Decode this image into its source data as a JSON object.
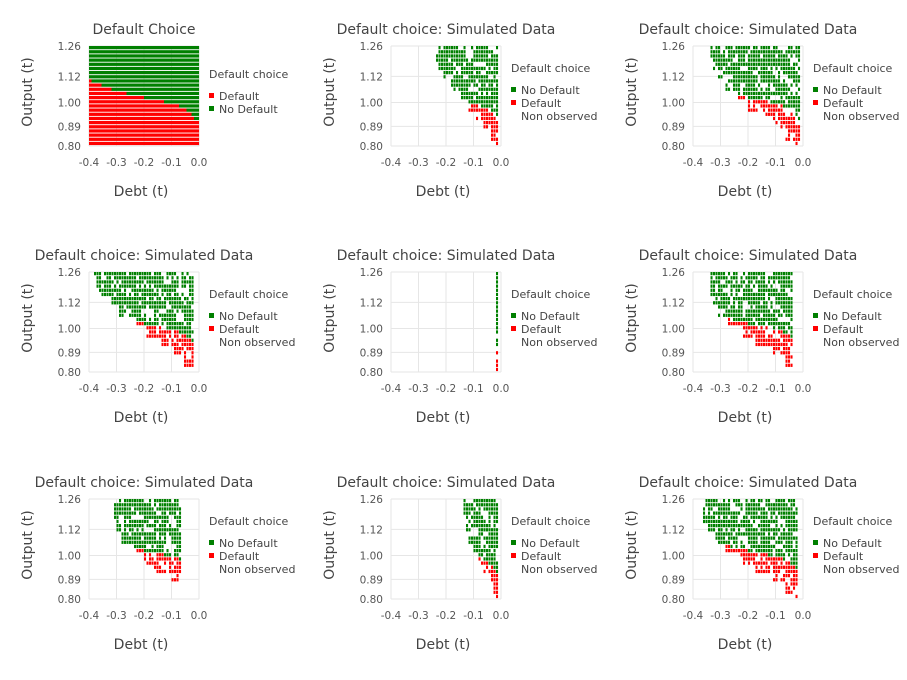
{
  "colors": {
    "default": "#ff0000",
    "no_default": "#008000",
    "non_observed": "#ffffff"
  },
  "chart_data": [
    {
      "type": "heatmap",
      "title": "Default Choice",
      "xlabel": "Debt (t)",
      "ylabel": "Output (t)",
      "xticks": [
        "-0.4",
        "-0.3",
        "-0.2",
        "-0.1",
        "0.0"
      ],
      "xtick_values": [
        -0.4,
        -0.3,
        -0.2,
        -0.1,
        0.0
      ],
      "yticks": [
        "1.26",
        "1.12",
        "1.00",
        "0.89",
        "0.80"
      ],
      "ytick_values": [
        1.26,
        1.12,
        1.0,
        0.89,
        0.8
      ],
      "xlim": [
        -0.4,
        0.0
      ],
      "ylim": [
        0.8,
        1.26
      ],
      "grid": true,
      "legend_position": "right",
      "legend": {
        "title": "Default choice",
        "items": [
          "Default",
          "No Default"
        ]
      },
      "boundary": {
        "x": [
          -0.4,
          -0.36,
          -0.32,
          -0.28,
          -0.24,
          -0.2,
          -0.16,
          -0.12,
          -0.08,
          -0.04,
          0.0
        ],
        "y": [
          1.1,
          1.08,
          1.06,
          1.05,
          1.03,
          1.02,
          1.01,
          1.0,
          0.99,
          0.96,
          0.9
        ]
      }
    },
    {
      "type": "heatmap",
      "title": "Default choice: Simulated Data",
      "xlabel": "Debt (t)",
      "ylabel": "Output (t)",
      "xticks": [
        "-0.4",
        "-0.3",
        "-0.2",
        "-0.1",
        "0.0"
      ],
      "xtick_values": [
        -0.4,
        -0.3,
        -0.2,
        -0.1,
        0.0
      ],
      "yticks": [
        "1.26",
        "1.12",
        "1.00",
        "0.89",
        "0.80"
      ],
      "ytick_values": [
        1.26,
        1.12,
        1.0,
        0.89,
        0.8
      ],
      "xlim": [
        -0.4,
        0.0
      ],
      "ylim": [
        0.8,
        1.26
      ],
      "grid": true,
      "legend_position": "right",
      "legend": {
        "title": "Default choice",
        "items": [
          "No Default",
          "Default",
          "Non observed"
        ]
      },
      "observed_region": {
        "x_min": [
          -0.24,
          -0.24,
          -0.23,
          -0.21,
          -0.18,
          -0.15,
          -0.12,
          -0.09,
          -0.06,
          -0.04,
          -0.02
        ],
        "x_max": -0.01
      },
      "boundary": {
        "x": [
          -0.4,
          -0.36,
          -0.32,
          -0.28,
          -0.24,
          -0.2,
          -0.16,
          -0.12,
          -0.08,
          -0.04,
          0.0
        ],
        "y": [
          1.1,
          1.08,
          1.06,
          1.05,
          1.03,
          1.02,
          1.01,
          1.0,
          0.99,
          0.96,
          0.9
        ]
      }
    },
    {
      "type": "heatmap",
      "title": "Default choice: Simulated Data",
      "xlabel": "Debt (t)",
      "ylabel": "Output (t)",
      "xticks": [
        "-0.4",
        "-0.3",
        "-0.2",
        "-0.1",
        "0.0"
      ],
      "xtick_values": [
        -0.4,
        -0.3,
        -0.2,
        -0.1,
        0.0
      ],
      "yticks": [
        "1.26",
        "1.12",
        "1.00",
        "0.89",
        "0.80"
      ],
      "ytick_values": [
        1.26,
        1.12,
        1.0,
        0.89,
        0.8
      ],
      "xlim": [
        -0.4,
        0.0
      ],
      "ylim": [
        0.8,
        1.26
      ],
      "grid": true,
      "legend_position": "right",
      "legend": {
        "title": "Default choice",
        "items": [
          "No Default",
          "Default",
          "Non observed"
        ]
      },
      "observed_region": {
        "x_min": [
          -0.34,
          -0.34,
          -0.33,
          -0.31,
          -0.28,
          -0.24,
          -0.2,
          -0.15,
          -0.1,
          -0.06,
          -0.03
        ],
        "x_max": -0.01
      },
      "boundary": {
        "x": [
          -0.4,
          -0.36,
          -0.32,
          -0.28,
          -0.24,
          -0.2,
          -0.16,
          -0.12,
          -0.08,
          -0.04,
          0.0
        ],
        "y": [
          1.1,
          1.08,
          1.06,
          1.05,
          1.03,
          1.02,
          1.01,
          1.0,
          0.99,
          0.96,
          0.9
        ]
      }
    },
    {
      "type": "heatmap",
      "title": "Default choice: Simulated Data",
      "xlabel": "Debt (t)",
      "ylabel": "Output (t)",
      "xticks": [
        "-0.4",
        "-0.3",
        "-0.2",
        "-0.1",
        "0.0"
      ],
      "xtick_values": [
        -0.4,
        -0.3,
        -0.2,
        -0.1,
        0.0
      ],
      "yticks": [
        "1.26",
        "1.12",
        "1.00",
        "0.89",
        "0.80"
      ],
      "ytick_values": [
        1.26,
        1.12,
        1.0,
        0.89,
        0.8
      ],
      "xlim": [
        -0.4,
        0.0
      ],
      "ylim": [
        0.8,
        1.26
      ],
      "grid": true,
      "legend_position": "right",
      "legend": {
        "title": "Default choice",
        "items": [
          "No Default",
          "Default",
          "Non observed"
        ]
      },
      "observed_region": {
        "x_min": [
          -0.38,
          -0.37,
          -0.36,
          -0.33,
          -0.29,
          -0.24,
          -0.19,
          -0.14,
          -0.09,
          -0.05,
          -0.02
        ],
        "x_max": -0.02
      },
      "boundary": {
        "x": [
          -0.4,
          -0.36,
          -0.32,
          -0.28,
          -0.24,
          -0.2,
          -0.16,
          -0.12,
          -0.08,
          -0.04,
          0.0
        ],
        "y": [
          1.1,
          1.08,
          1.06,
          1.05,
          1.03,
          1.02,
          1.01,
          1.0,
          0.99,
          0.96,
          0.9
        ]
      }
    },
    {
      "type": "heatmap",
      "title": "Default choice: Simulated Data",
      "xlabel": "Debt (t)",
      "ylabel": "Output (t)",
      "xticks": [
        "-0.4",
        "-0.3",
        "-0.2",
        "-0.1",
        "0.0"
      ],
      "xtick_values": [
        -0.4,
        -0.3,
        -0.2,
        -0.1,
        0.0
      ],
      "yticks": [
        "1.26",
        "1.12",
        "1.00",
        "0.89",
        "0.80"
      ],
      "ytick_values": [
        1.26,
        1.12,
        1.0,
        0.89,
        0.8
      ],
      "xlim": [
        -0.4,
        0.0
      ],
      "ylim": [
        0.8,
        1.26
      ],
      "grid": true,
      "legend_position": "right",
      "legend": {
        "title": "Default choice",
        "items": [
          "No Default",
          "Default",
          "Non observed"
        ]
      },
      "observed_region": {
        "x_min": [
          -0.02,
          -0.02,
          -0.02,
          -0.02,
          -0.02,
          -0.02,
          -0.02,
          -0.02,
          -0.02,
          -0.02,
          -0.02
        ],
        "x_max": -0.01
      },
      "boundary": {
        "x": [
          -0.4,
          -0.36,
          -0.32,
          -0.28,
          -0.24,
          -0.2,
          -0.16,
          -0.12,
          -0.08,
          -0.04,
          0.0
        ],
        "y": [
          1.1,
          1.08,
          1.06,
          1.05,
          1.03,
          1.02,
          1.01,
          1.0,
          0.99,
          0.96,
          0.9
        ]
      }
    },
    {
      "type": "heatmap",
      "title": "Default choice: Simulated Data",
      "xlabel": "Debt (t)",
      "ylabel": "Output (t)",
      "xticks": [
        "-0.4",
        "-0.3",
        "-0.2",
        "-0.1",
        "0.0"
      ],
      "xtick_values": [
        -0.4,
        -0.3,
        -0.2,
        -0.1,
        0.0
      ],
      "yticks": [
        "1.26",
        "1.12",
        "1.00",
        "0.89",
        "0.80"
      ],
      "ytick_values": [
        1.26,
        1.12,
        1.0,
        0.89,
        0.8
      ],
      "xlim": [
        -0.4,
        0.0
      ],
      "ylim": [
        0.8,
        1.26
      ],
      "grid": true,
      "legend_position": "right",
      "legend": {
        "title": "Default choice",
        "items": [
          "No Default",
          "Default",
          "Non observed"
        ]
      },
      "observed_region": {
        "x_min": [
          -0.34,
          -0.34,
          -0.34,
          -0.33,
          -0.31,
          -0.27,
          -0.22,
          -0.17,
          -0.11,
          -0.06,
          -0.03
        ],
        "x_max": -0.04
      },
      "boundary": {
        "x": [
          -0.4,
          -0.36,
          -0.32,
          -0.28,
          -0.24,
          -0.2,
          -0.16,
          -0.12,
          -0.08,
          -0.04,
          0.0
        ],
        "y": [
          1.1,
          1.08,
          1.06,
          1.05,
          1.03,
          1.02,
          1.01,
          1.0,
          0.99,
          0.96,
          0.9
        ]
      }
    },
    {
      "type": "heatmap",
      "title": "Default choice: Simulated Data",
      "xlabel": "Debt (t)",
      "ylabel": "Output (t)",
      "xticks": [
        "-0.4",
        "-0.3",
        "-0.2",
        "-0.1",
        "0.0"
      ],
      "xtick_values": [
        -0.4,
        -0.3,
        -0.2,
        -0.1,
        0.0
      ],
      "yticks": [
        "1.26",
        "1.12",
        "1.00",
        "0.89",
        "0.80"
      ],
      "ytick_values": [
        1.26,
        1.12,
        1.0,
        0.89,
        0.8
      ],
      "xlim": [
        -0.4,
        0.0
      ],
      "ylim": [
        0.8,
        1.26
      ],
      "grid": true,
      "legend_position": "right",
      "legend": {
        "title": "Default choice",
        "items": [
          "No Default",
          "Default",
          "Non observed"
        ]
      },
      "observed_region": {
        "x_min": [
          -0.31,
          -0.31,
          -0.31,
          -0.3,
          -0.28,
          -0.24,
          -0.2,
          -0.16,
          -0.1,
          -0.05,
          -0.03
        ],
        "x_max": -0.06
      },
      "boundary": {
        "x": [
          -0.4,
          -0.36,
          -0.32,
          -0.28,
          -0.24,
          -0.2,
          -0.16,
          -0.12,
          -0.08,
          -0.04,
          0.0
        ],
        "y": [
          1.1,
          1.08,
          1.06,
          1.05,
          1.03,
          1.02,
          1.01,
          1.0,
          0.99,
          0.96,
          0.9
        ]
      }
    },
    {
      "type": "heatmap",
      "title": "Default choice: Simulated Data",
      "xlabel": "Debt (t)",
      "ylabel": "Output (t)",
      "xticks": [
        "-0.4",
        "-0.3",
        "-0.2",
        "-0.1",
        "0.0"
      ],
      "xtick_values": [
        -0.4,
        -0.3,
        -0.2,
        -0.1,
        0.0
      ],
      "yticks": [
        "1.26",
        "1.12",
        "1.00",
        "0.89",
        "0.80"
      ],
      "ytick_values": [
        1.26,
        1.12,
        1.0,
        0.89,
        0.8
      ],
      "xlim": [
        -0.4,
        0.0
      ],
      "ylim": [
        0.8,
        1.26
      ],
      "grid": true,
      "legend_position": "right",
      "legend": {
        "title": "Default choice",
        "items": [
          "No Default",
          "Default",
          "Non observed"
        ]
      },
      "observed_region": {
        "x_min": [
          -0.14,
          -0.14,
          -0.14,
          -0.13,
          -0.12,
          -0.1,
          -0.08,
          -0.06,
          -0.04,
          -0.03,
          -0.02
        ],
        "x_max": -0.01
      },
      "boundary": {
        "x": [
          -0.4,
          -0.36,
          -0.32,
          -0.28,
          -0.24,
          -0.2,
          -0.16,
          -0.12,
          -0.08,
          -0.04,
          0.0
        ],
        "y": [
          1.1,
          1.08,
          1.06,
          1.05,
          1.03,
          1.02,
          1.01,
          1.0,
          0.99,
          0.96,
          0.9
        ]
      }
    },
    {
      "type": "heatmap",
      "title": "Default choice: Simulated Data",
      "xlabel": "Debt (t)",
      "ylabel": "Output (t)",
      "xticks": [
        "-0.4",
        "-0.3",
        "-0.2",
        "-0.1",
        "0.0"
      ],
      "xtick_values": [
        -0.4,
        -0.3,
        -0.2,
        -0.1,
        0.0
      ],
      "yticks": [
        "1.26",
        "1.12",
        "1.00",
        "0.89",
        "0.80"
      ],
      "ytick_values": [
        1.26,
        1.12,
        1.0,
        0.89,
        0.8
      ],
      "xlim": [
        -0.4,
        0.0
      ],
      "ylim": [
        0.8,
        1.26
      ],
      "grid": true,
      "legend_position": "right",
      "legend": {
        "title": "Default choice",
        "items": [
          "No Default",
          "Default",
          "Non observed"
        ]
      },
      "observed_region": {
        "x_min": [
          -0.36,
          -0.36,
          -0.36,
          -0.35,
          -0.32,
          -0.28,
          -0.23,
          -0.17,
          -0.11,
          -0.06,
          -0.03
        ],
        "x_max": -0.02
      },
      "boundary": {
        "x": [
          -0.4,
          -0.36,
          -0.32,
          -0.28,
          -0.24,
          -0.2,
          -0.16,
          -0.12,
          -0.08,
          -0.04,
          0.0
        ],
        "y": [
          1.1,
          1.08,
          1.06,
          1.05,
          1.03,
          1.02,
          1.01,
          1.0,
          0.99,
          0.96,
          0.9
        ]
      }
    }
  ]
}
